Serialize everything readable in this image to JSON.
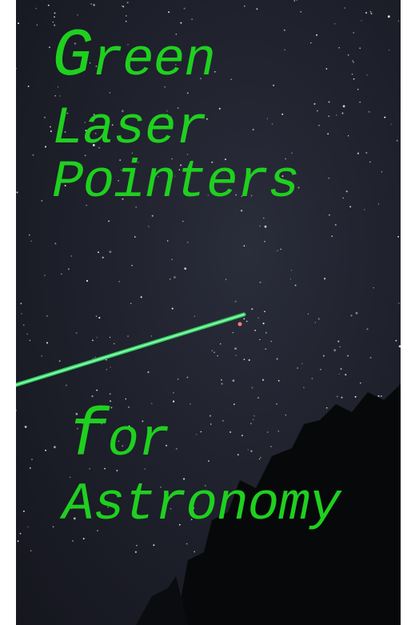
{
  "title": {
    "line1": "Green",
    "line2": "Laser",
    "line3": "Pointers"
  },
  "subtitle": {
    "line1": "for",
    "line2": "Astronomy"
  }
}
